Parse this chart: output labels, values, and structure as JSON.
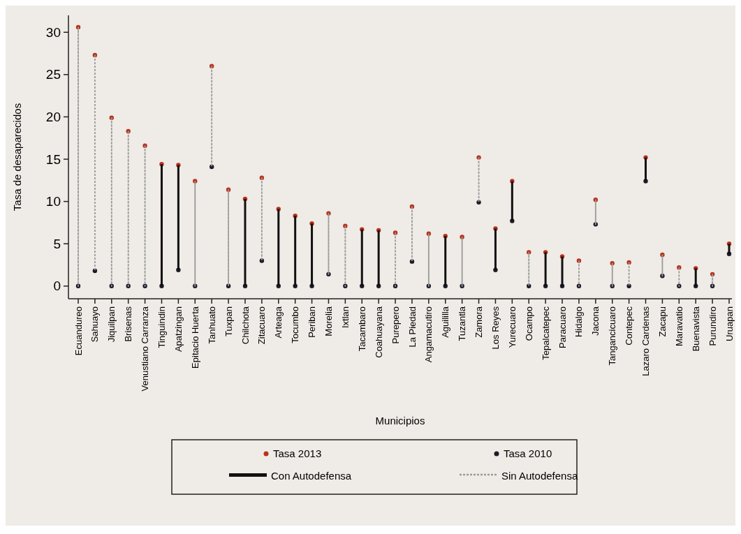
{
  "chart_data": {
    "type": "scatter",
    "xlabel": "Municipios",
    "ylabel": "Tasa de desaparecidos",
    "categories": [
      "Ecuandureo",
      "Sahuayo",
      "Jiquilpan",
      "Brisenas",
      "Venustiano Carranza",
      "Tinguindin",
      "Apatzingan",
      "Epitacio Huerta",
      "Tanhuato",
      "Tuxpan",
      "Chilchota",
      "Zitacuaro",
      "Arteaga",
      "Tocumbo",
      "Periban",
      "Morelia",
      "Ixtlan",
      "Tacambaro",
      "Coahuayana",
      "Purepero",
      "La Piedad",
      "Angamacutiro",
      "Aguililla",
      "Tuzantla",
      "Zamora",
      "Los Reyes",
      "Yurecuaro",
      "Ocampo",
      "Tepalcatepec",
      "Paracuaro",
      "Hidalgo",
      "Jacona",
      "Tangancicuaro",
      "Contepec",
      "Lazaro Cardenas",
      "Zacapu",
      "Maravatio",
      "Buenavista",
      "Purundiro",
      "Uruapan"
    ],
    "ylim": [
      -1.5,
      32
    ],
    "yticks": [
      0,
      5,
      10,
      15,
      20,
      25,
      30
    ],
    "grid": false,
    "legend": "bottom",
    "marker": "circle",
    "series": [
      {
        "name": "Tasa 2013",
        "color": "#b8321c",
        "values": [
          30.6,
          27.3,
          19.9,
          18.3,
          16.6,
          14.4,
          14.3,
          12.4,
          26.0,
          11.4,
          10.3,
          12.8,
          9.1,
          8.3,
          7.4,
          8.6,
          7.1,
          6.7,
          6.6,
          6.3,
          9.4,
          6.2,
          5.9,
          5.8,
          15.2,
          6.8,
          12.4,
          4.0,
          4.0,
          3.5,
          3.0,
          10.2,
          2.7,
          2.8,
          15.2,
          3.7,
          2.2,
          2.1,
          1.4,
          5.0
        ]
      },
      {
        "name": "Tasa 2010",
        "color": "#1c1c2a",
        "values": [
          0,
          1.8,
          0,
          0,
          0,
          0,
          1.9,
          0,
          14.1,
          0,
          0,
          3.0,
          0,
          0,
          0,
          1.4,
          0,
          0,
          0,
          0,
          2.9,
          0,
          0,
          0,
          9.9,
          1.9,
          7.7,
          0,
          0,
          0,
          0,
          7.3,
          0,
          0,
          12.4,
          1.2,
          0,
          0,
          0,
          3.8
        ]
      },
      {
        "name": "Con Autodefensa",
        "type": "bar",
        "color": "#111111",
        "line_style": "solid",
        "base": [
          null,
          null,
          null,
          null,
          null,
          0,
          1.9,
          null,
          null,
          null,
          0,
          null,
          0,
          0,
          0,
          null,
          null,
          0,
          0,
          null,
          null,
          null,
          0,
          null,
          null,
          1.9,
          7.7,
          null,
          0,
          0,
          null,
          null,
          null,
          null,
          12.4,
          null,
          null,
          0,
          null,
          3.8
        ],
        "values": [
          null,
          null,
          null,
          null,
          null,
          14.4,
          12.4,
          null,
          null,
          null,
          10.3,
          null,
          9.1,
          8.3,
          7.4,
          null,
          null,
          6.7,
          6.6,
          null,
          null,
          null,
          5.9,
          null,
          null,
          4.9,
          4.7,
          null,
          4.0,
          3.5,
          null,
          null,
          null,
          null,
          2.8,
          null,
          null,
          2.1,
          null,
          1.2
        ]
      },
      {
        "name": "Sin Autodefensa",
        "type": "bar",
        "color": "#9a9a9a",
        "line_style": "dotted",
        "base": [
          0,
          1.8,
          0,
          0,
          0,
          null,
          null,
          0,
          14.1,
          0,
          null,
          3.0,
          null,
          null,
          null,
          1.4,
          0,
          null,
          null,
          0,
          2.9,
          0,
          null,
          0,
          9.9,
          null,
          null,
          0,
          null,
          null,
          0,
          7.3,
          0,
          0,
          null,
          1.2,
          0,
          null,
          0,
          null
        ],
        "values": [
          30.6,
          25.5,
          19.9,
          18.3,
          16.6,
          null,
          null,
          12.4,
          11.9,
          11.4,
          null,
          9.8,
          null,
          null,
          null,
          7.2,
          7.1,
          null,
          null,
          6.3,
          6.5,
          6.2,
          null,
          5.8,
          5.3,
          null,
          null,
          4.0,
          null,
          null,
          3.0,
          2.9,
          2.7,
          2.8,
          null,
          2.5,
          2.2,
          null,
          1.4,
          null
        ]
      }
    ]
  }
}
